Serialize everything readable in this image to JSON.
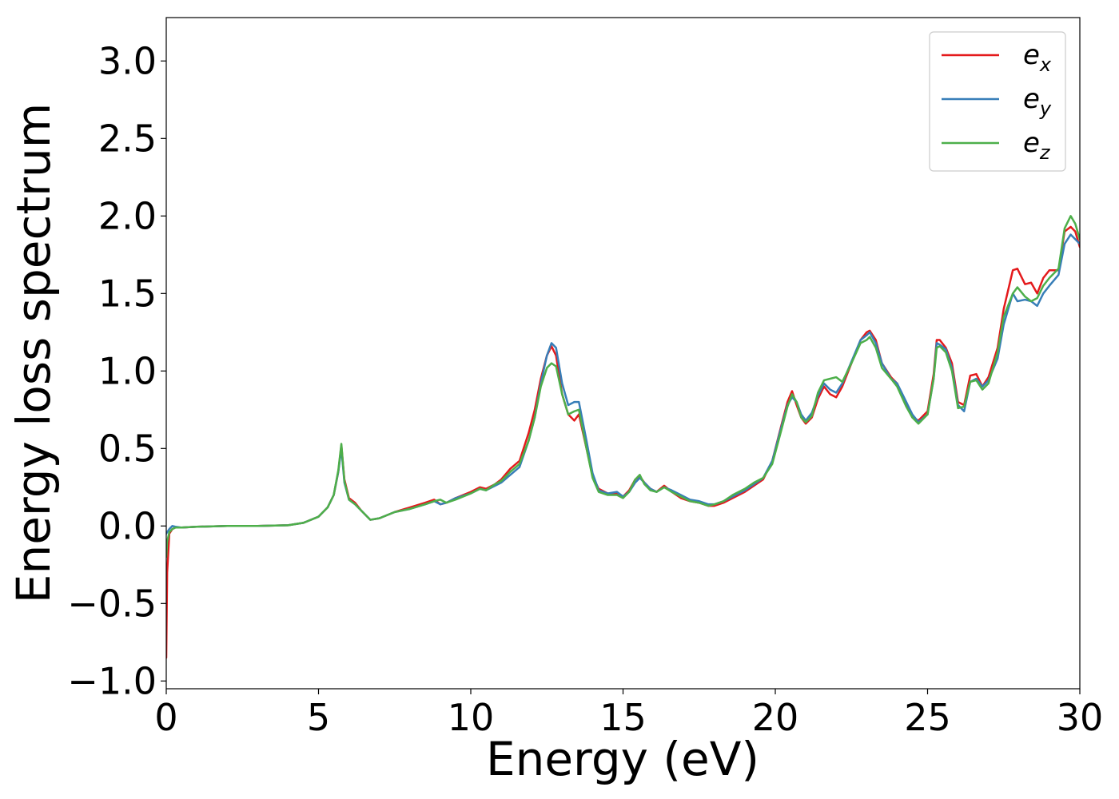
{
  "chart_data": {
    "type": "line",
    "xlabel": "Energy (eV)",
    "ylabel": "Energy loss spectrum",
    "xlim": [
      0,
      30
    ],
    "ylim": [
      -1.05,
      3.28
    ],
    "xticks": [
      0,
      5,
      10,
      15,
      20,
      25,
      30
    ],
    "xtick_labels": [
      "0",
      "5",
      "10",
      "15",
      "20",
      "25",
      "30"
    ],
    "yticks": [
      -1.0,
      -0.5,
      0.0,
      0.5,
      1.0,
      1.5,
      2.0,
      2.5,
      3.0
    ],
    "ytick_labels": [
      "−1.0",
      "−0.5",
      "0.0",
      "0.5",
      "1.0",
      "1.5",
      "2.0",
      "2.5",
      "3.0"
    ],
    "grid": false,
    "legend": {
      "position": "top-right"
    },
    "series": [
      {
        "name": "e",
        "subscript": "x",
        "color": "#e41a1c",
        "x": [
          0.0,
          0.03,
          0.1,
          0.2,
          0.3,
          0.5,
          1,
          2,
          3,
          4,
          4.5,
          5,
          5.3,
          5.5,
          5.65,
          5.75,
          5.85,
          6.0,
          6.2,
          6.4,
          6.7,
          7,
          7.5,
          8,
          8.5,
          8.8,
          9,
          9.2,
          9.5,
          10,
          10.3,
          10.5,
          10.8,
          11,
          11.3,
          11.6,
          11.9,
          12.1,
          12.3,
          12.5,
          12.65,
          12.8,
          13.0,
          13.2,
          13.4,
          13.55,
          13.8,
          14.0,
          14.2,
          14.5,
          14.8,
          15.0,
          15.2,
          15.4,
          15.55,
          15.7,
          15.9,
          16.1,
          16.35,
          16.6,
          16.9,
          17.2,
          17.5,
          17.8,
          18.0,
          18.3,
          18.6,
          19.0,
          19.3,
          19.6,
          19.9,
          20.2,
          20.4,
          20.55,
          20.7,
          20.85,
          21.0,
          21.2,
          21.4,
          21.6,
          21.8,
          22.0,
          22.2,
          22.5,
          22.8,
          23.0,
          23.1,
          23.3,
          23.5,
          23.8,
          24.0,
          24.3,
          24.5,
          24.7,
          25.0,
          25.2,
          25.3,
          25.4,
          25.6,
          25.8,
          26.0,
          26.2,
          26.4,
          26.6,
          26.8,
          27.0,
          27.3,
          27.5,
          27.8,
          27.95,
          28.2,
          28.4,
          28.6,
          28.8,
          29.0,
          29.3,
          29.5,
          29.7,
          29.85,
          30.0
        ],
        "y": [
          -0.85,
          -0.3,
          -0.05,
          -0.02,
          -0.01,
          -0.01,
          -0.005,
          0.0,
          0.0,
          0.005,
          0.02,
          0.06,
          0.12,
          0.2,
          0.35,
          0.52,
          0.3,
          0.18,
          0.15,
          0.1,
          0.04,
          0.05,
          0.09,
          0.12,
          0.15,
          0.17,
          0.14,
          0.15,
          0.18,
          0.22,
          0.25,
          0.24,
          0.27,
          0.3,
          0.37,
          0.42,
          0.6,
          0.75,
          0.95,
          1.1,
          1.16,
          1.1,
          0.85,
          0.72,
          0.68,
          0.72,
          0.5,
          0.32,
          0.24,
          0.21,
          0.21,
          0.19,
          0.23,
          0.3,
          0.32,
          0.28,
          0.24,
          0.22,
          0.26,
          0.22,
          0.18,
          0.16,
          0.15,
          0.13,
          0.13,
          0.15,
          0.18,
          0.22,
          0.26,
          0.3,
          0.42,
          0.65,
          0.8,
          0.87,
          0.78,
          0.7,
          0.66,
          0.7,
          0.82,
          0.9,
          0.85,
          0.83,
          0.9,
          1.05,
          1.2,
          1.25,
          1.26,
          1.2,
          1.05,
          0.96,
          0.92,
          0.78,
          0.7,
          0.68,
          0.74,
          0.98,
          1.2,
          1.2,
          1.15,
          1.05,
          0.8,
          0.78,
          0.97,
          0.98,
          0.9,
          0.96,
          1.15,
          1.4,
          1.65,
          1.66,
          1.56,
          1.57,
          1.5,
          1.6,
          1.65,
          1.65,
          1.9,
          1.93,
          1.9,
          1.8
        ]
      },
      {
        "name": "e",
        "subscript": "y",
        "color": "#377eb8",
        "x": [
          0.0,
          0.03,
          0.1,
          0.2,
          0.3,
          0.5,
          1,
          2,
          3,
          4,
          4.5,
          5,
          5.3,
          5.5,
          5.65,
          5.75,
          5.85,
          6.0,
          6.2,
          6.4,
          6.7,
          7,
          7.5,
          8,
          8.5,
          8.8,
          9,
          9.2,
          9.5,
          10,
          10.3,
          10.5,
          10.8,
          11,
          11.3,
          11.6,
          11.9,
          12.1,
          12.3,
          12.5,
          12.65,
          12.8,
          13.0,
          13.2,
          13.4,
          13.55,
          13.8,
          14.0,
          14.2,
          14.5,
          14.8,
          15.0,
          15.2,
          15.4,
          15.55,
          15.7,
          15.9,
          16.1,
          16.35,
          16.6,
          16.9,
          17.2,
          17.5,
          17.8,
          18.0,
          18.3,
          18.6,
          19.0,
          19.3,
          19.6,
          19.9,
          20.2,
          20.4,
          20.55,
          20.7,
          20.85,
          21.0,
          21.2,
          21.4,
          21.6,
          21.8,
          22.0,
          22.2,
          22.5,
          22.8,
          23.0,
          23.1,
          23.3,
          23.5,
          23.8,
          24.0,
          24.3,
          24.5,
          24.7,
          25.0,
          25.2,
          25.3,
          25.4,
          25.6,
          25.8,
          26.0,
          26.2,
          26.4,
          26.6,
          26.8,
          27.0,
          27.3,
          27.5,
          27.8,
          27.95,
          28.2,
          28.4,
          28.6,
          28.8,
          29.0,
          29.3,
          29.5,
          29.7,
          29.85,
          30.0
        ],
        "y": [
          -0.05,
          -0.04,
          -0.02,
          0.0,
          -0.005,
          -0.01,
          -0.005,
          0.0,
          0.0,
          0.005,
          0.02,
          0.06,
          0.12,
          0.2,
          0.35,
          0.5,
          0.28,
          0.17,
          0.14,
          0.1,
          0.04,
          0.05,
          0.09,
          0.11,
          0.14,
          0.16,
          0.14,
          0.15,
          0.18,
          0.21,
          0.24,
          0.23,
          0.26,
          0.28,
          0.33,
          0.38,
          0.55,
          0.7,
          0.92,
          1.1,
          1.18,
          1.15,
          0.92,
          0.78,
          0.8,
          0.8,
          0.55,
          0.34,
          0.23,
          0.21,
          0.22,
          0.19,
          0.22,
          0.28,
          0.31,
          0.28,
          0.24,
          0.22,
          0.25,
          0.23,
          0.2,
          0.17,
          0.16,
          0.14,
          0.14,
          0.16,
          0.19,
          0.23,
          0.27,
          0.31,
          0.42,
          0.64,
          0.78,
          0.83,
          0.8,
          0.72,
          0.68,
          0.73,
          0.84,
          0.92,
          0.88,
          0.86,
          0.92,
          1.06,
          1.2,
          1.23,
          1.25,
          1.18,
          1.05,
          0.95,
          0.92,
          0.8,
          0.72,
          0.67,
          0.72,
          0.95,
          1.18,
          1.17,
          1.14,
          1.02,
          0.78,
          0.74,
          0.93,
          0.95,
          0.9,
          0.94,
          1.08,
          1.3,
          1.5,
          1.45,
          1.46,
          1.45,
          1.42,
          1.5,
          1.55,
          1.62,
          1.82,
          1.88,
          1.85,
          1.82
        ]
      },
      {
        "name": "e",
        "subscript": "z",
        "color": "#4daf4a",
        "x": [
          0.0,
          0.03,
          0.1,
          0.2,
          0.3,
          0.5,
          1,
          2,
          3,
          4,
          4.5,
          5,
          5.3,
          5.5,
          5.65,
          5.75,
          5.85,
          6.0,
          6.2,
          6.4,
          6.7,
          7,
          7.5,
          8,
          8.5,
          8.8,
          9,
          9.2,
          9.5,
          10,
          10.3,
          10.5,
          10.8,
          11,
          11.3,
          11.6,
          11.9,
          12.1,
          12.3,
          12.5,
          12.65,
          12.8,
          13.0,
          13.2,
          13.4,
          13.55,
          13.8,
          14.0,
          14.2,
          14.5,
          14.8,
          15.0,
          15.2,
          15.4,
          15.55,
          15.7,
          15.9,
          16.1,
          16.35,
          16.6,
          16.9,
          17.2,
          17.5,
          17.8,
          18.0,
          18.3,
          18.6,
          19.0,
          19.3,
          19.6,
          19.9,
          20.2,
          20.4,
          20.55,
          20.7,
          20.85,
          21.0,
          21.2,
          21.4,
          21.6,
          21.8,
          22.0,
          22.2,
          22.5,
          22.8,
          23.0,
          23.1,
          23.3,
          23.5,
          23.8,
          24.0,
          24.3,
          24.5,
          24.7,
          25.0,
          25.2,
          25.3,
          25.4,
          25.6,
          25.8,
          26.0,
          26.2,
          26.4,
          26.6,
          26.8,
          27.0,
          27.3,
          27.5,
          27.8,
          27.95,
          28.2,
          28.4,
          28.6,
          28.8,
          29.0,
          29.3,
          29.5,
          29.7,
          29.85,
          30.0
        ],
        "y": [
          -0.2,
          -0.1,
          -0.04,
          -0.02,
          -0.01,
          -0.01,
          -0.005,
          0.0,
          0.0,
          0.005,
          0.02,
          0.06,
          0.12,
          0.2,
          0.36,
          0.53,
          0.29,
          0.17,
          0.14,
          0.1,
          0.04,
          0.05,
          0.09,
          0.11,
          0.14,
          0.16,
          0.17,
          0.15,
          0.17,
          0.21,
          0.24,
          0.23,
          0.27,
          0.29,
          0.35,
          0.4,
          0.55,
          0.7,
          0.9,
          1.02,
          1.05,
          1.03,
          0.85,
          0.72,
          0.74,
          0.75,
          0.5,
          0.31,
          0.22,
          0.2,
          0.2,
          0.18,
          0.22,
          0.3,
          0.33,
          0.27,
          0.23,
          0.22,
          0.25,
          0.22,
          0.19,
          0.16,
          0.15,
          0.13,
          0.14,
          0.16,
          0.2,
          0.24,
          0.28,
          0.31,
          0.4,
          0.62,
          0.77,
          0.85,
          0.8,
          0.7,
          0.67,
          0.71,
          0.86,
          0.94,
          0.95,
          0.96,
          0.93,
          1.05,
          1.18,
          1.2,
          1.22,
          1.15,
          1.02,
          0.95,
          0.9,
          0.77,
          0.7,
          0.66,
          0.72,
          0.95,
          1.15,
          1.16,
          1.12,
          1.0,
          0.76,
          0.77,
          0.93,
          0.94,
          0.88,
          0.92,
          1.12,
          1.35,
          1.5,
          1.54,
          1.48,
          1.45,
          1.47,
          1.55,
          1.6,
          1.66,
          1.92,
          2.0,
          1.95,
          1.85
        ]
      }
    ]
  }
}
